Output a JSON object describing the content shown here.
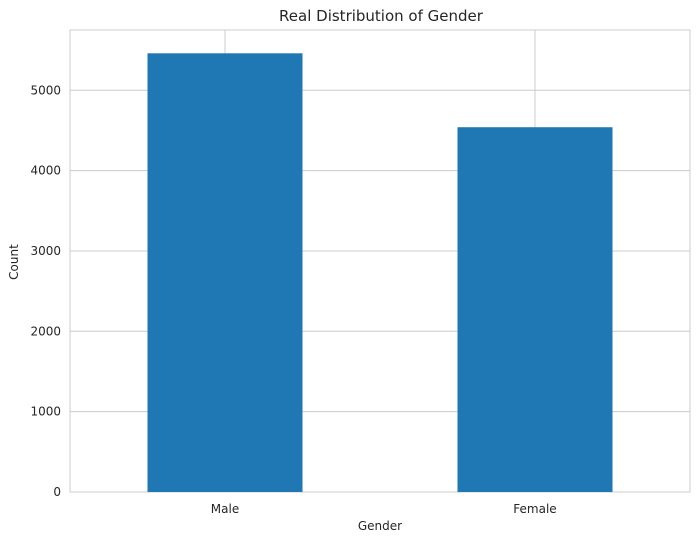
{
  "chart_data": {
    "type": "bar",
    "title": "Real Distribution of Gender",
    "xlabel": "Gender",
    "ylabel": "Count",
    "categories": [
      "Male",
      "Female"
    ],
    "values": [
      5460,
      4540
    ],
    "ylim": [
      0,
      5750
    ],
    "yticks": [
      0,
      1000,
      2000,
      3000,
      4000,
      5000
    ],
    "grid": true,
    "legend": "none",
    "bar_color": "#1f77b4",
    "grid_color": "#cccccc"
  }
}
